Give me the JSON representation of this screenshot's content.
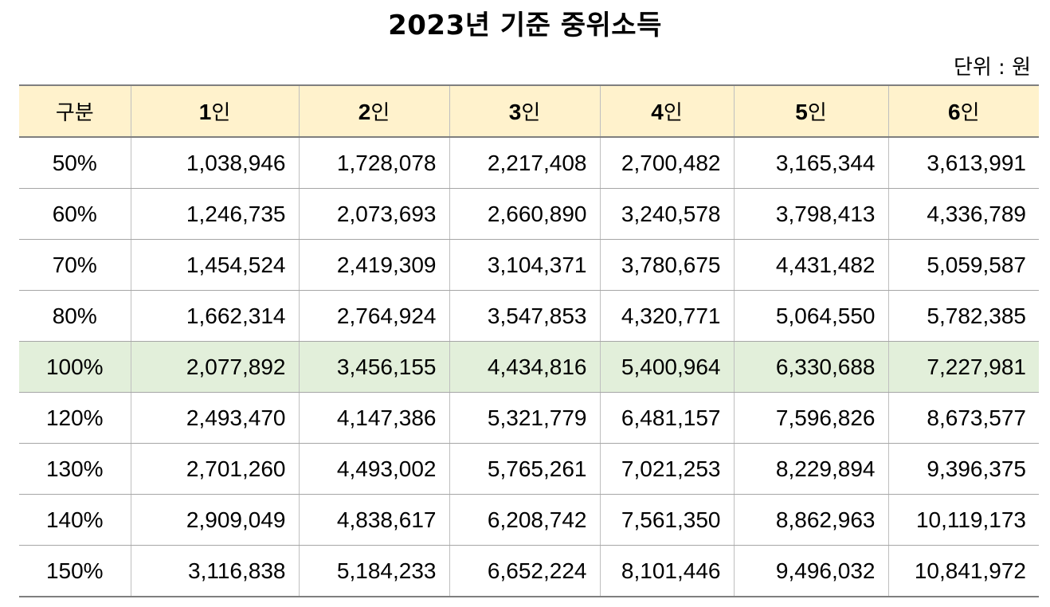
{
  "title": "2023년 기준 중위소득",
  "unit_label": "단위 : 원",
  "colors": {
    "header_bg": "#fff2cc",
    "highlight_row_bg": "#e2efda"
  },
  "table": {
    "header": {
      "category": "구분",
      "columns": [
        {
          "num": "1",
          "suffix": "인"
        },
        {
          "num": "2",
          "suffix": "인"
        },
        {
          "num": "3",
          "suffix": "인"
        },
        {
          "num": "4",
          "suffix": "인"
        },
        {
          "num": "5",
          "suffix": "인"
        },
        {
          "num": "6",
          "suffix": "인"
        }
      ]
    },
    "rows": [
      {
        "pct": "50%",
        "values": [
          "1,038,946",
          "1,728,078",
          "2,217,408",
          "2,700,482",
          "3,165,344",
          "3,613,991"
        ]
      },
      {
        "pct": "60%",
        "values": [
          "1,246,735",
          "2,073,693",
          "2,660,890",
          "3,240,578",
          "3,798,413",
          "4,336,789"
        ]
      },
      {
        "pct": "70%",
        "values": [
          "1,454,524",
          "2,419,309",
          "3,104,371",
          "3,780,675",
          "4,431,482",
          "5,059,587"
        ]
      },
      {
        "pct": "80%",
        "values": [
          "1,662,314",
          "2,764,924",
          "3,547,853",
          "4,320,771",
          "5,064,550",
          "5,782,385"
        ]
      },
      {
        "pct": "100%",
        "values": [
          "2,077,892",
          "3,456,155",
          "4,434,816",
          "5,400,964",
          "6,330,688",
          "7,227,981"
        ]
      },
      {
        "pct": "120%",
        "values": [
          "2,493,470",
          "4,147,386",
          "5,321,779",
          "6,481,157",
          "7,596,826",
          "8,673,577"
        ]
      },
      {
        "pct": "130%",
        "values": [
          "2,701,260",
          "4,493,002",
          "5,765,261",
          "7,021,253",
          "8,229,894",
          "9,396,375"
        ]
      },
      {
        "pct": "140%",
        "values": [
          "2,909,049",
          "4,838,617",
          "6,208,742",
          "7,561,350",
          "8,862,963",
          "10,119,173"
        ]
      },
      {
        "pct": "150%",
        "values": [
          "3,116,838",
          "5,184,233",
          "6,652,224",
          "8,101,446",
          "9,496,032",
          "10,841,972"
        ]
      }
    ]
  }
}
